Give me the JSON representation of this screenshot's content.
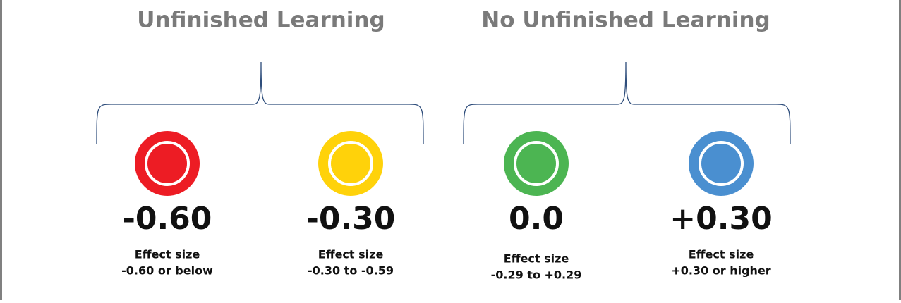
{
  "groups": [
    {
      "title": "Unfinished Learning",
      "items": [
        {
          "value": "-0.60",
          "label": "Effect size",
          "range": "-0.60 or below",
          "color": "#ed1c24"
        },
        {
          "value": "-0.30",
          "label": "Effect size",
          "range": "-0.30 to -0.59",
          "color": "#ffd20a"
        }
      ]
    },
    {
      "title": "No Unfinished Learning",
      "items": [
        {
          "value": "0.0",
          "label": "Effect size",
          "range": "-0.29 to +0.29",
          "color": "#4cb552"
        },
        {
          "value": "+0.30",
          "label": "Effect size",
          "range": "+0.30 or higher",
          "color": "#4a8fd0"
        }
      ]
    }
  ]
}
